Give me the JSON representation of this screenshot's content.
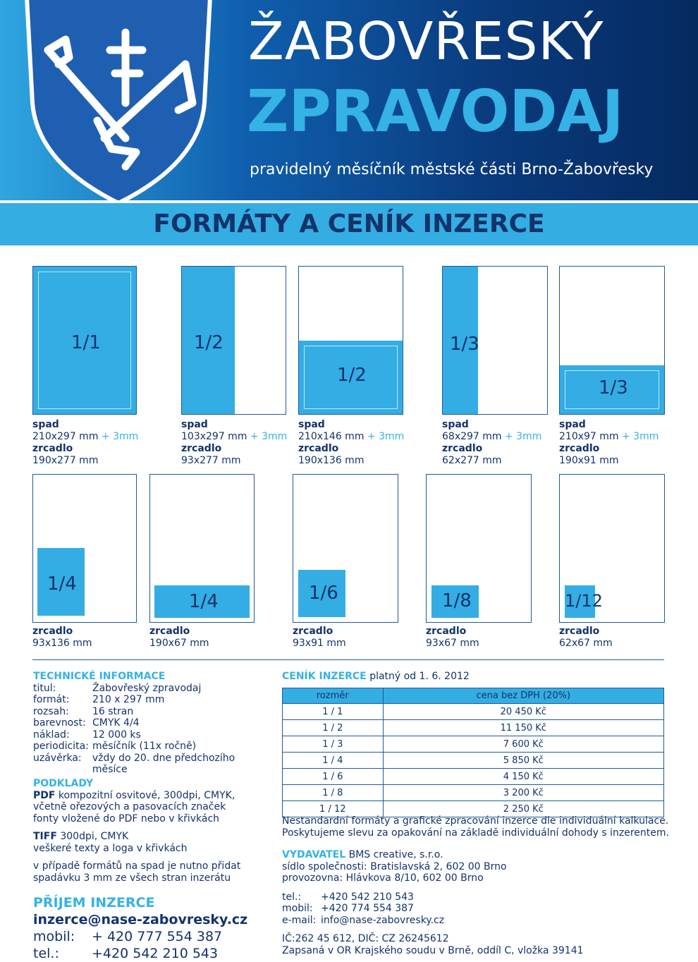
{
  "header": {
    "title_line1": "ŽABOVŘESKÝ",
    "title_line2": "ZPRAVODAJ",
    "subtitle": "pravidelný měsíčník městské části Brno-Žabovřesky"
  },
  "band_title": "FORMÁTY A CENÍK INZERCE",
  "formats_row1": [
    {
      "label": "1/1",
      "spad_label": "spad",
      "spad": "210x297 mm",
      "bleed": "+ 3mm",
      "zrcadlo_label": "zrcadlo",
      "zrcadlo": "190x277 mm"
    },
    {
      "label": "1/2",
      "spad_label": "spad",
      "spad": "103x297 mm",
      "bleed": "+ 3mm",
      "zrcadlo_label": "zrcadlo",
      "zrcadlo": "93x277 mm"
    },
    {
      "label": "1/2",
      "spad_label": "spad",
      "spad": "210x146 mm",
      "bleed": "+ 3mm",
      "zrcadlo_label": "zrcadlo",
      "zrcadlo": "190x136 mm"
    },
    {
      "label": "1/3",
      "spad_label": "spad",
      "spad": "68x297 mm",
      "bleed": "+ 3mm",
      "zrcadlo_label": "zrcadlo",
      "zrcadlo": "62x277 mm"
    },
    {
      "label": "1/3",
      "spad_label": "spad",
      "spad": "210x97 mm",
      "bleed": "+ 3mm",
      "zrcadlo_label": "zrcadlo",
      "zrcadlo": "190x91 mm"
    }
  ],
  "formats_row2": [
    {
      "label": "1/4",
      "zrcadlo_label": "zrcadlo",
      "zrcadlo": "93x136 mm"
    },
    {
      "label": "1/4",
      "zrcadlo_label": "zrcadlo",
      "zrcadlo": "190x67 mm"
    },
    {
      "label": "1/6",
      "zrcadlo_label": "zrcadlo",
      "zrcadlo": "93x91 mm"
    },
    {
      "label": "1/8",
      "zrcadlo_label": "zrcadlo",
      "zrcadlo": "93x67 mm"
    },
    {
      "label": "1/12",
      "zrcadlo_label": "zrcadlo",
      "zrcadlo": "62x67 mm"
    }
  ],
  "tech": {
    "heading": "TECHNICKÉ INFORMACE",
    "rows": [
      {
        "k": "titul:",
        "v": "Žabovřeský zpravodaj"
      },
      {
        "k": "formát:",
        "v": "210 x 297 mm"
      },
      {
        "k": "rozsah:",
        "v": "16 stran"
      },
      {
        "k": "barevnost:",
        "v": "CMYK 4/4"
      },
      {
        "k": "náklad:",
        "v": "12 000 ks"
      },
      {
        "k": "periodicita:",
        "v": "měsíčník (11x ročně)"
      },
      {
        "k": "uzávěrka:",
        "v": "vždy do 20. dne předchozího měsíce"
      }
    ]
  },
  "podklady": {
    "heading": "PODKLADY",
    "pdf_label": "PDF",
    "pdf_line1": " kompozitní osvitové, 300dpi, CMYK,",
    "pdf_line2": "včetně ořezových a pasovacích značek",
    "pdf_line3": "fonty vložené do PDF nebo v křivkách",
    "tiff_label": "TIFF",
    "tiff_line1": " 300dpi, CMYK",
    "tiff_line2": "veškeré texty a loga v křivkách",
    "note_line1": "v případě formátů na spad je nutno přidat",
    "note_line2": "spadávku 3 mm ze všech stran inzerátu"
  },
  "prijem": {
    "heading": "PŘÍJEM INZERCE",
    "email": "inzerce@nase-zabovresky.cz",
    "mobil_label": "mobil:",
    "mobil": "+ 420 777 554 387",
    "tel_label": "tel.:",
    "tel": "+420 542 210 543"
  },
  "cenik": {
    "heading": "CENÍK INZERCE",
    "valid": " platný od 1. 6. 2012",
    "col1": "rozměr",
    "col2": "cena bez DPH (20%)",
    "rows": [
      {
        "size": "1 / 1",
        "price": "20 450 Kč"
      },
      {
        "size": "1 / 2",
        "price": "11 150 Kč"
      },
      {
        "size": "1 / 3",
        "price": "7 600 Kč"
      },
      {
        "size": "1 / 4",
        "price": "5 850 Kč"
      },
      {
        "size": "1 / 6",
        "price": "4 150 Kč"
      },
      {
        "size": "1 / 8",
        "price": "3 200 Kč"
      },
      {
        "size": "1 / 12",
        "price": "2 250 Kč"
      }
    ],
    "note_line1": "Nestandardní formáty a grafické zpracování inzerce dle individuální kalkulace.",
    "note_line2": "Poskytujeme slevu za opakování na základě individuální dohody s inzerentem."
  },
  "vydavatel": {
    "heading": "VYDAVATEL",
    "name": " BMS creative, s.r.o.",
    "sidlo": "sídlo společnosti: Bratislavská 2, 602 00 Brno",
    "provozovna": "provozovna: Hlávkova 8/10, 602 00 Brno",
    "tel_label": "tel.:",
    "tel": "+420 542 210 543",
    "mobil_label": "mobil:",
    "mobil": "+420 774 554 387",
    "email_label": "e-mail:",
    "email": "info@nase-zabovresky.cz",
    "ic": "IČ:262 45 612, DIČ: CZ 26245612",
    "registr": "Zapsaná v OR Krajského soudu v Brně, oddíl C, vložka 39141"
  }
}
